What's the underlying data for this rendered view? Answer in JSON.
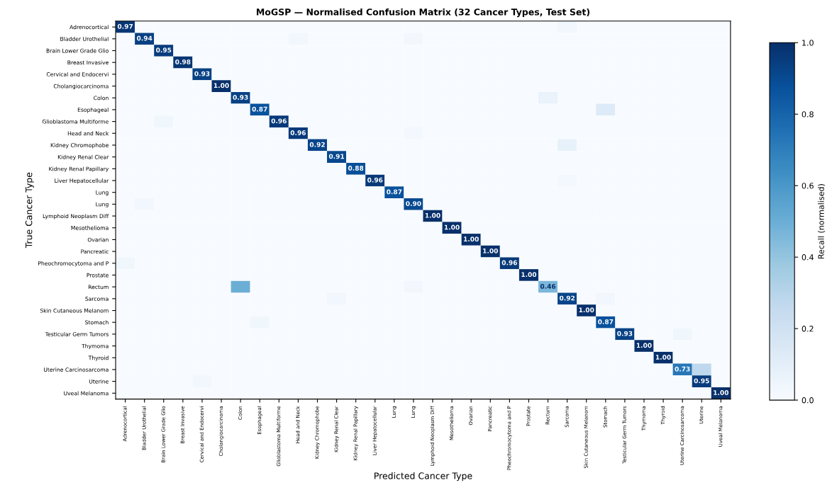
{
  "chart_data": {
    "type": "heatmap",
    "title": "MoGSP — Normalised Confusion Matrix (32 Cancer Types, Test Set)",
    "xlabel": "Predicted Cancer Type",
    "ylabel": "True Cancer Type",
    "clabel": "Recall (normalised)",
    "categories": [
      "Adrenocortical",
      "Bladder Urothelial",
      "Brain Lower Grade Glio",
      "Breast Invasive",
      "Cervical and Endocervi",
      "Cholangiocarcinoma",
      "Colon",
      "Esophageal",
      "Glioblastoma Multiforme",
      "Head and Neck",
      "Kidney Chromophobe",
      "Kidney Renal Clear",
      "Kidney Renal Papillary",
      "Liver Hepatocellular",
      "Lung",
      "Lung",
      "Lymphoid Neoplasm Diff",
      "Mesothelioma",
      "Ovarian",
      "Pancreatic",
      "Pheochromocytoma and P",
      "Prostate",
      "Rectum",
      "Sarcoma",
      "Skin Cutaneous Melanom",
      "Stomach",
      "Testicular Germ Tumors",
      "Thymoma",
      "Thyroid",
      "Uterine Carcinosarcoma",
      "Uterine",
      "Uveal Melanoma"
    ],
    "y_categories": [
      "Adrenocortical",
      "Bladder Urothelial",
      "Brain Lower Grade Glio",
      "Breast Invasive",
      "Cervical and Endocervi",
      "Cholangiocarcinoma",
      "Colon",
      "Esophageal",
      "Glioblastoma Multiforme",
      "Head and Neck",
      "Kidney Chromophobe",
      "Kidney Renal Clear",
      "Kidney Renal Papillary",
      "Liver Hepatocellular",
      "Lung",
      "Lung",
      "Lymphoid Neoplasm Diff",
      "Mesothelioma",
      "Ovarian",
      "Pancreatic",
      "Pheochromocytoma and P",
      "Prostate",
      "Rectum",
      "Sarcoma",
      "Skin Cutaneous Melanom",
      "Stomach",
      "Testicular Germ Tumors",
      "Thymoma",
      "Thyroid",
      "Uterine Carcinosarcoma",
      "Uterine",
      "Uveal Melanoma"
    ],
    "cells": [
      [
        0.97,
        0,
        0,
        0,
        0,
        0,
        0,
        0,
        0,
        0,
        0,
        0,
        0,
        0,
        0,
        0,
        0,
        0,
        0,
        0,
        0,
        0,
        0,
        0.03,
        0,
        0,
        0,
        0,
        0,
        0,
        0,
        0
      ],
      [
        0,
        0.94,
        0,
        0,
        0,
        0,
        0,
        0,
        0,
        0.03,
        0,
        0,
        0,
        0,
        0,
        0.03,
        0,
        0,
        0,
        0,
        0,
        0,
        0,
        0,
        0,
        0,
        0,
        0,
        0,
        0,
        0,
        0
      ],
      [
        0,
        0,
        0.95,
        0,
        0,
        0,
        0,
        0,
        0,
        0,
        0,
        0,
        0,
        0,
        0,
        0,
        0,
        0,
        0,
        0,
        0,
        0,
        0,
        0,
        0,
        0,
        0,
        0,
        0,
        0,
        0,
        0
      ],
      [
        0,
        0,
        0,
        0.98,
        0,
        0,
        0,
        0,
        0,
        0,
        0,
        0,
        0,
        0,
        0,
        0,
        0,
        0,
        0,
        0,
        0,
        0,
        0,
        0,
        0,
        0,
        0,
        0,
        0,
        0,
        0,
        0
      ],
      [
        0,
        0,
        0,
        0,
        0.93,
        0,
        0,
        0,
        0,
        0,
        0,
        0,
        0,
        0,
        0,
        0,
        0,
        0,
        0,
        0,
        0,
        0,
        0,
        0,
        0,
        0,
        0,
        0,
        0,
        0,
        0,
        0
      ],
      [
        0,
        0,
        0,
        0,
        0,
        1.0,
        0,
        0,
        0,
        0,
        0,
        0,
        0,
        0,
        0,
        0,
        0,
        0,
        0,
        0,
        0,
        0,
        0,
        0,
        0,
        0,
        0,
        0,
        0,
        0,
        0,
        0
      ],
      [
        0,
        0,
        0,
        0,
        0,
        0,
        0.93,
        0,
        0,
        0,
        0,
        0,
        0,
        0,
        0,
        0,
        0,
        0,
        0,
        0,
        0,
        0,
        0.07,
        0,
        0,
        0,
        0,
        0,
        0,
        0,
        0,
        0
      ],
      [
        0,
        0,
        0,
        0,
        0,
        0,
        0,
        0.87,
        0,
        0,
        0,
        0,
        0,
        0,
        0,
        0,
        0,
        0,
        0,
        0,
        0,
        0,
        0,
        0,
        0,
        0.13,
        0,
        0,
        0,
        0,
        0,
        0
      ],
      [
        0,
        0,
        0.04,
        0,
        0,
        0,
        0,
        0,
        0.96,
        0,
        0,
        0,
        0,
        0,
        0,
        0,
        0,
        0,
        0,
        0,
        0,
        0,
        0,
        0,
        0,
        0,
        0,
        0,
        0,
        0,
        0,
        0
      ],
      [
        0,
        0,
        0,
        0,
        0,
        0,
        0,
        0,
        0,
        0.96,
        0,
        0,
        0,
        0,
        0,
        0.02,
        0,
        0,
        0,
        0,
        0,
        0,
        0,
        0,
        0,
        0,
        0,
        0,
        0,
        0,
        0,
        0
      ],
      [
        0,
        0,
        0,
        0,
        0,
        0,
        0,
        0,
        0,
        0,
        0.92,
        0,
        0,
        0,
        0,
        0,
        0,
        0,
        0,
        0,
        0,
        0,
        0,
        0.08,
        0,
        0,
        0,
        0,
        0,
        0,
        0,
        0
      ],
      [
        0,
        0,
        0,
        0,
        0,
        0,
        0,
        0,
        0,
        0,
        0,
        0.91,
        0,
        0,
        0,
        0,
        0,
        0,
        0,
        0,
        0,
        0,
        0,
        0,
        0,
        0,
        0,
        0,
        0,
        0,
        0,
        0
      ],
      [
        0,
        0,
        0,
        0,
        0,
        0,
        0,
        0,
        0,
        0,
        0,
        0,
        0.88,
        0,
        0,
        0,
        0,
        0,
        0,
        0,
        0,
        0,
        0,
        0,
        0,
        0,
        0,
        0,
        0,
        0,
        0,
        0
      ],
      [
        0,
        0,
        0,
        0,
        0,
        0,
        0,
        0,
        0,
        0,
        0,
        0,
        0,
        0.96,
        0,
        0,
        0,
        0,
        0,
        0,
        0,
        0,
        0,
        0.02,
        0,
        0,
        0,
        0,
        0,
        0,
        0,
        0
      ],
      [
        0,
        0,
        0,
        0,
        0,
        0,
        0,
        0,
        0,
        0,
        0,
        0,
        0,
        0,
        0.87,
        0,
        0,
        0,
        0,
        0,
        0,
        0,
        0,
        0,
        0,
        0,
        0,
        0,
        0,
        0,
        0,
        0
      ],
      [
        0,
        0.03,
        0,
        0,
        0,
        0,
        0,
        0,
        0,
        0,
        0,
        0,
        0,
        0,
        0,
        0.9,
        0,
        0,
        0,
        0,
        0,
        0,
        0,
        0,
        0,
        0,
        0,
        0,
        0,
        0,
        0,
        0
      ],
      [
        0,
        0,
        0,
        0,
        0,
        0,
        0,
        0,
        0,
        0,
        0,
        0,
        0,
        0,
        0,
        0,
        1.0,
        0,
        0,
        0,
        0,
        0,
        0,
        0,
        0,
        0,
        0,
        0,
        0,
        0,
        0,
        0
      ],
      [
        0,
        0,
        0,
        0,
        0,
        0,
        0,
        0,
        0,
        0,
        0,
        0,
        0,
        0,
        0,
        0,
        0,
        1.0,
        0,
        0,
        0,
        0,
        0,
        0,
        0,
        0,
        0,
        0,
        0,
        0,
        0,
        0
      ],
      [
        0,
        0,
        0,
        0,
        0,
        0,
        0,
        0,
        0,
        0,
        0,
        0,
        0,
        0,
        0,
        0,
        0,
        0,
        1.0,
        0,
        0,
        0,
        0,
        0,
        0,
        0,
        0,
        0,
        0,
        0,
        0,
        0
      ],
      [
        0,
        0,
        0,
        0,
        0,
        0,
        0,
        0,
        0,
        0,
        0,
        0,
        0,
        0,
        0,
        0,
        0,
        0,
        0,
        1.0,
        0,
        0,
        0,
        0,
        0,
        0,
        0,
        0,
        0,
        0,
        0,
        0
      ],
      [
        0.04,
        0,
        0,
        0,
        0,
        0,
        0,
        0,
        0,
        0,
        0,
        0,
        0,
        0,
        0,
        0,
        0,
        0,
        0,
        0,
        0.96,
        0,
        0,
        0,
        0,
        0,
        0,
        0,
        0,
        0,
        0,
        0
      ],
      [
        0,
        0,
        0,
        0,
        0,
        0,
        0,
        0,
        0,
        0,
        0,
        0,
        0,
        0,
        0,
        0,
        0,
        0,
        0,
        0,
        0,
        1.0,
        0,
        0,
        0,
        0,
        0,
        0,
        0,
        0,
        0,
        0
      ],
      [
        0,
        0,
        0,
        0,
        0,
        0,
        0.5,
        0,
        0,
        0,
        0,
        0,
        0,
        0,
        0,
        0.03,
        0,
        0,
        0,
        0,
        0,
        0,
        0.46,
        0,
        0,
        0,
        0,
        0,
        0,
        0,
        0,
        0
      ],
      [
        0,
        0,
        0,
        0,
        0,
        0,
        0,
        0,
        0,
        0,
        0,
        0.03,
        0,
        0,
        0,
        0,
        0,
        0,
        0,
        0,
        0,
        0,
        0,
        0.92,
        0,
        0.03,
        0,
        0,
        0,
        0,
        0,
        0
      ],
      [
        0,
        0,
        0,
        0,
        0,
        0,
        0,
        0,
        0,
        0,
        0,
        0,
        0,
        0,
        0,
        0,
        0,
        0,
        0,
        0,
        0,
        0,
        0,
        0,
        1.0,
        0,
        0,
        0,
        0,
        0,
        0,
        0
      ],
      [
        0,
        0,
        0,
        0,
        0,
        0,
        0,
        0.04,
        0,
        0,
        0,
        0,
        0,
        0,
        0,
        0,
        0,
        0,
        0,
        0,
        0,
        0,
        0,
        0,
        0,
        0.87,
        0,
        0,
        0,
        0,
        0,
        0
      ],
      [
        0,
        0,
        0,
        0,
        0,
        0,
        0,
        0,
        0,
        0,
        0,
        0,
        0,
        0,
        0,
        0,
        0,
        0,
        0,
        0,
        0,
        0,
        0,
        0,
        0,
        0,
        0.93,
        0,
        0,
        0.04,
        0,
        0
      ],
      [
        0,
        0,
        0,
        0,
        0,
        0,
        0,
        0,
        0,
        0,
        0,
        0,
        0,
        0,
        0,
        0,
        0,
        0,
        0,
        0,
        0,
        0,
        0,
        0,
        0,
        0,
        0,
        1.0,
        0,
        0,
        0,
        0
      ],
      [
        0,
        0,
        0,
        0,
        0,
        0,
        0,
        0,
        0,
        0,
        0,
        0,
        0,
        0,
        0,
        0,
        0,
        0,
        0,
        0,
        0,
        0,
        0,
        0,
        0,
        0,
        0,
        0,
        1.0,
        0,
        0,
        0
      ],
      [
        0,
        0,
        0,
        0,
        0,
        0,
        0,
        0,
        0,
        0,
        0,
        0,
        0,
        0,
        0,
        0,
        0,
        0,
        0,
        0,
        0,
        0,
        0,
        0,
        0,
        0,
        0,
        0,
        0,
        0.73,
        0.27,
        0
      ],
      [
        0,
        0,
        0,
        0,
        0.03,
        0,
        0,
        0,
        0,
        0,
        0,
        0,
        0,
        0,
        0,
        0,
        0,
        0,
        0,
        0,
        0,
        0,
        0,
        0,
        0,
        0,
        0,
        0,
        0,
        0,
        0.95,
        0
      ],
      [
        0,
        0,
        0,
        0,
        0,
        0,
        0,
        0,
        0,
        0,
        0,
        0,
        0,
        0,
        0,
        0,
        0,
        0,
        0,
        0,
        0,
        0,
        0,
        0,
        0,
        0,
        0,
        0,
        0,
        0,
        0,
        1.0
      ]
    ],
    "cell_labels": [
      [
        "0.97",
        null,
        null,
        null,
        null,
        null,
        null,
        null,
        null,
        null,
        null,
        null,
        null,
        null,
        null,
        null,
        null,
        null,
        null,
        null,
        null,
        null,
        null,
        null,
        null,
        null,
        null,
        null,
        null,
        null,
        null,
        null
      ],
      [
        null,
        "0.94",
        null,
        null,
        null,
        null,
        null,
        null,
        null,
        null,
        null,
        null,
        null,
        null,
        null,
        null,
        null,
        null,
        null,
        null,
        null,
        null,
        null,
        null,
        null,
        null,
        null,
        null,
        null,
        null,
        null,
        null
      ],
      [
        null,
        null,
        "0.95",
        null,
        null,
        null,
        null,
        null,
        null,
        null,
        null,
        null,
        null,
        null,
        null,
        null,
        null,
        null,
        null,
        null,
        null,
        null,
        null,
        null,
        null,
        null,
        null,
        null,
        null,
        null,
        null,
        null
      ],
      [
        null,
        null,
        null,
        "0.98",
        null,
        null,
        null,
        null,
        null,
        null,
        null,
        null,
        null,
        null,
        null,
        null,
        null,
        null,
        null,
        null,
        null,
        null,
        null,
        null,
        null,
        null,
        null,
        null,
        null,
        null,
        null,
        null
      ],
      [
        null,
        null,
        null,
        null,
        "0.93",
        null,
        null,
        null,
        null,
        null,
        null,
        null,
        null,
        null,
        null,
        null,
        null,
        null,
        null,
        null,
        null,
        null,
        null,
        null,
        null,
        null,
        null,
        null,
        null,
        null,
        null,
        null
      ],
      [
        null,
        null,
        null,
        null,
        null,
        "1.00",
        null,
        null,
        null,
        null,
        null,
        null,
        null,
        null,
        null,
        null,
        null,
        null,
        null,
        null,
        null,
        null,
        null,
        null,
        null,
        null,
        null,
        null,
        null,
        null,
        null,
        null
      ],
      [
        null,
        null,
        null,
        null,
        null,
        null,
        "0.93",
        null,
        null,
        null,
        null,
        null,
        null,
        null,
        null,
        null,
        null,
        null,
        null,
        null,
        null,
        null,
        null,
        null,
        null,
        null,
        null,
        null,
        null,
        null,
        null,
        null
      ],
      [
        null,
        null,
        null,
        null,
        null,
        null,
        null,
        "0.87",
        null,
        null,
        null,
        null,
        null,
        null,
        null,
        null,
        null,
        null,
        null,
        null,
        null,
        null,
        null,
        null,
        null,
        null,
        null,
        null,
        null,
        null,
        null,
        null
      ],
      [
        null,
        null,
        null,
        null,
        null,
        null,
        null,
        null,
        "0.96",
        null,
        null,
        null,
        null,
        null,
        null,
        null,
        null,
        null,
        null,
        null,
        null,
        null,
        null,
        null,
        null,
        null,
        null,
        null,
        null,
        null,
        null,
        null
      ],
      [
        null,
        null,
        null,
        null,
        null,
        null,
        null,
        null,
        null,
        "0.96",
        null,
        null,
        null,
        null,
        null,
        null,
        null,
        null,
        null,
        null,
        null,
        null,
        null,
        null,
        null,
        null,
        null,
        null,
        null,
        null,
        null,
        null
      ],
      [
        null,
        null,
        null,
        null,
        null,
        null,
        null,
        null,
        null,
        null,
        "0.92",
        null,
        null,
        null,
        null,
        null,
        null,
        null,
        null,
        null,
        null,
        null,
        null,
        null,
        null,
        null,
        null,
        null,
        null,
        null,
        null,
        null
      ],
      [
        null,
        null,
        null,
        null,
        null,
        null,
        null,
        null,
        null,
        null,
        null,
        "0.91",
        null,
        null,
        null,
        null,
        null,
        null,
        null,
        null,
        null,
        null,
        null,
        null,
        null,
        null,
        null,
        null,
        null,
        null,
        null,
        null
      ],
      [
        null,
        null,
        null,
        null,
        null,
        null,
        null,
        null,
        null,
        null,
        null,
        null,
        "0.88",
        null,
        null,
        null,
        null,
        null,
        null,
        null,
        null,
        null,
        null,
        null,
        null,
        null,
        null,
        null,
        null,
        null,
        null,
        null
      ],
      [
        null,
        null,
        null,
        null,
        null,
        null,
        null,
        null,
        null,
        null,
        null,
        null,
        null,
        "0.96",
        null,
        null,
        null,
        null,
        null,
        null,
        null,
        null,
        null,
        null,
        null,
        null,
        null,
        null,
        null,
        null,
        null,
        null
      ],
      [
        null,
        null,
        null,
        null,
        null,
        null,
        null,
        null,
        null,
        null,
        null,
        null,
        null,
        null,
        "0.87",
        null,
        null,
        null,
        null,
        null,
        null,
        null,
        null,
        null,
        null,
        null,
        null,
        null,
        null,
        null,
        null,
        null
      ],
      [
        null,
        null,
        null,
        null,
        null,
        null,
        null,
        null,
        null,
        null,
        null,
        null,
        null,
        null,
        null,
        "0.90",
        null,
        null,
        null,
        null,
        null,
        null,
        null,
        null,
        null,
        null,
        null,
        null,
        null,
        null,
        null,
        null
      ],
      [
        null,
        null,
        null,
        null,
        null,
        null,
        null,
        null,
        null,
        null,
        null,
        null,
        null,
        null,
        null,
        null,
        "1.00",
        null,
        null,
        null,
        null,
        null,
        null,
        null,
        null,
        null,
        null,
        null,
        null,
        null,
        null,
        null
      ],
      [
        null,
        null,
        null,
        null,
        null,
        null,
        null,
        null,
        null,
        null,
        null,
        null,
        null,
        null,
        null,
        null,
        null,
        "1.00",
        null,
        null,
        null,
        null,
        null,
        null,
        null,
        null,
        null,
        null,
        null,
        null,
        null,
        null
      ],
      [
        null,
        null,
        null,
        null,
        null,
        null,
        null,
        null,
        null,
        null,
        null,
        null,
        null,
        null,
        null,
        null,
        null,
        null,
        "1.00",
        null,
        null,
        null,
        null,
        null,
        null,
        null,
        null,
        null,
        null,
        null,
        null,
        null
      ],
      [
        null,
        null,
        null,
        null,
        null,
        null,
        null,
        null,
        null,
        null,
        null,
        null,
        null,
        null,
        null,
        null,
        null,
        null,
        null,
        "1.00",
        null,
        null,
        null,
        null,
        null,
        null,
        null,
        null,
        null,
        null,
        null,
        null
      ],
      [
        null,
        null,
        null,
        null,
        null,
        null,
        null,
        null,
        null,
        null,
        null,
        null,
        null,
        null,
        null,
        null,
        null,
        null,
        null,
        null,
        "0.96",
        null,
        null,
        null,
        null,
        null,
        null,
        null,
        null,
        null,
        null,
        null
      ],
      [
        null,
        null,
        null,
        null,
        null,
        null,
        null,
        null,
        null,
        null,
        null,
        null,
        null,
        null,
        null,
        null,
        null,
        null,
        null,
        null,
        null,
        "1.00",
        null,
        null,
        null,
        null,
        null,
        null,
        null,
        null,
        null,
        null
      ],
      [
        null,
        null,
        null,
        null,
        null,
        null,
        null,
        null,
        null,
        null,
        null,
        null,
        null,
        null,
        null,
        null,
        null,
        null,
        null,
        null,
        null,
        null,
        "0.46",
        null,
        null,
        null,
        null,
        null,
        null,
        null,
        null,
        null
      ],
      [
        null,
        null,
        null,
        null,
        null,
        null,
        null,
        null,
        null,
        null,
        null,
        null,
        null,
        null,
        null,
        null,
        null,
        null,
        null,
        null,
        null,
        null,
        null,
        "0.92",
        null,
        null,
        null,
        null,
        null,
        null,
        null,
        null
      ],
      [
        null,
        null,
        null,
        null,
        null,
        null,
        null,
        null,
        null,
        null,
        null,
        null,
        null,
        null,
        null,
        null,
        null,
        null,
        null,
        null,
        null,
        null,
        null,
        null,
        "1.00",
        null,
        null,
        null,
        null,
        null,
        null,
        null
      ],
      [
        null,
        null,
        null,
        null,
        null,
        null,
        null,
        null,
        null,
        null,
        null,
        null,
        null,
        null,
        null,
        null,
        null,
        null,
        null,
        null,
        null,
        null,
        null,
        null,
        null,
        "0.87",
        null,
        null,
        null,
        null,
        null,
        null
      ],
      [
        null,
        null,
        null,
        null,
        null,
        null,
        null,
        null,
        null,
        null,
        null,
        null,
        null,
        null,
        null,
        null,
        null,
        null,
        null,
        null,
        null,
        null,
        null,
        null,
        null,
        null,
        "0.93",
        null,
        null,
        null,
        null,
        null
      ],
      [
        null,
        null,
        null,
        null,
        null,
        null,
        null,
        null,
        null,
        null,
        null,
        null,
        null,
        null,
        null,
        null,
        null,
        null,
        null,
        null,
        null,
        null,
        null,
        null,
        null,
        null,
        null,
        "1.00",
        null,
        null,
        null,
        null
      ],
      [
        null,
        null,
        null,
        null,
        null,
        null,
        null,
        null,
        null,
        null,
        null,
        null,
        null,
        null,
        null,
        null,
        null,
        null,
        null,
        null,
        null,
        null,
        null,
        null,
        null,
        null,
        null,
        null,
        "1.00",
        null,
        null,
        null
      ],
      [
        null,
        null,
        null,
        null,
        null,
        null,
        null,
        null,
        null,
        null,
        null,
        null,
        null,
        null,
        null,
        null,
        null,
        null,
        null,
        null,
        null,
        null,
        null,
        null,
        null,
        null,
        null,
        null,
        null,
        "0.73",
        null,
        null
      ],
      [
        null,
        null,
        null,
        null,
        null,
        null,
        null,
        null,
        null,
        null,
        null,
        null,
        null,
        null,
        null,
        null,
        null,
        null,
        null,
        null,
        null,
        null,
        null,
        null,
        null,
        null,
        null,
        null,
        null,
        null,
        "0.95",
        null
      ],
      [
        null,
        null,
        null,
        null,
        null,
        null,
        null,
        null,
        null,
        null,
        null,
        null,
        null,
        null,
        null,
        null,
        null,
        null,
        null,
        null,
        null,
        null,
        null,
        null,
        null,
        null,
        null,
        null,
        null,
        null,
        null,
        "1.00"
      ]
    ],
    "clim": [
      0,
      1
    ],
    "cticks": [
      {
        "value": 0,
        "label": "0.0"
      },
      {
        "value": 0.2,
        "label": "0.2"
      },
      {
        "value": 0.4,
        "label": "0.4"
      },
      {
        "value": 0.6,
        "label": "0.6"
      },
      {
        "value": 0.8,
        "label": "0.8"
      },
      {
        "value": 1,
        "label": "1.0"
      }
    ]
  }
}
